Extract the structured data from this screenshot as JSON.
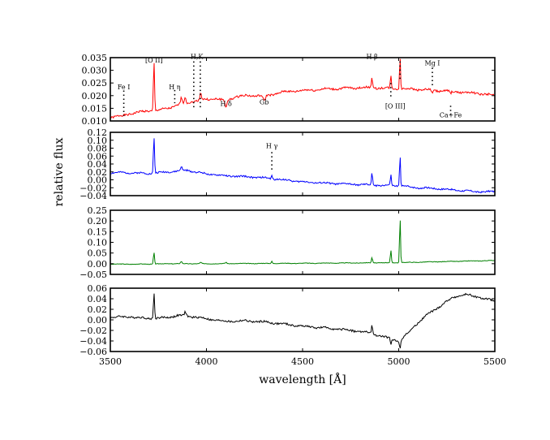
{
  "chart_data": {
    "type": "line",
    "xlabel": "wavelength [Å]",
    "ylabel": "relative flux",
    "xlim": [
      3500,
      5500
    ],
    "xticks": [
      3500,
      4000,
      4500,
      5000,
      5500
    ],
    "panels": [
      {
        "color": "#ff0000",
        "ylim": [
          0.01,
          0.035
        ],
        "yticks": [
          "0.010",
          "0.015",
          "0.020",
          "0.025",
          "0.030",
          "0.035"
        ],
        "baseline": [
          [
            3500,
            0.0115
          ],
          [
            3560,
            0.012
          ],
          [
            3600,
            0.0128
          ],
          [
            3650,
            0.0135
          ],
          [
            3700,
            0.014
          ],
          [
            3750,
            0.0142
          ],
          [
            3800,
            0.015
          ],
          [
            3850,
            0.0162
          ],
          [
            3900,
            0.0172
          ],
          [
            3950,
            0.018
          ],
          [
            4000,
            0.0185
          ],
          [
            4050,
            0.0188
          ],
          [
            4100,
            0.018
          ],
          [
            4150,
            0.0195
          ],
          [
            4200,
            0.02
          ],
          [
            4300,
            0.02
          ],
          [
            4350,
            0.0205
          ],
          [
            4400,
            0.0215
          ],
          [
            4500,
            0.022
          ],
          [
            4600,
            0.0225
          ],
          [
            4700,
            0.0228
          ],
          [
            4800,
            0.0232
          ],
          [
            4900,
            0.023
          ],
          [
            5000,
            0.0228
          ],
          [
            5100,
            0.0225
          ],
          [
            5200,
            0.022
          ],
          [
            5300,
            0.0215
          ],
          [
            5400,
            0.021
          ],
          [
            5500,
            0.02
          ]
        ],
        "features": [
          [
            3727,
            0.02,
            4
          ],
          [
            3869,
            0.003,
            5
          ],
          [
            3889,
            0.0025,
            5
          ],
          [
            3970,
            0.003,
            5
          ],
          [
            4102,
            -0.0025,
            8
          ],
          [
            4300,
            -0.002,
            10
          ],
          [
            4861,
            0.0045,
            4
          ],
          [
            4959,
            0.005,
            3.5
          ],
          [
            5007,
            0.013,
            3.5
          ],
          [
            5175,
            -0.001,
            6
          ],
          [
            5270,
            -0.001,
            6
          ]
        ],
        "seed": 1,
        "noise": 0.0004,
        "annotations": [
          {
            "label": "Fe I",
            "x": 3570,
            "y": 0.0225
          },
          {
            "label": "[O II]",
            "x": 3727,
            "y": 0.033
          },
          {
            "label": "H η",
            "x": 3835,
            "y": 0.0225
          },
          {
            "label": "H,K",
            "x": 3950,
            "y": 0.0345
          },
          {
            "label": "H δ",
            "x": 4102,
            "y": 0.016
          },
          {
            "label": "Gb",
            "x": 4300,
            "y": 0.0165
          },
          {
            "label": "H β",
            "x": 4861,
            "y": 0.0345
          },
          {
            "label": "[O III]",
            "x": 4982,
            "y": 0.015
          },
          {
            "label": "Mg I",
            "x": 5175,
            "y": 0.032
          },
          {
            "label": "Ca+Fe",
            "x": 5270,
            "y": 0.0115
          }
        ],
        "markers": [
          {
            "x": 3570,
            "y1": 0.022,
            "y2": 0.012
          },
          {
            "x": 3835,
            "y1": 0.0222,
            "y2": 0.017
          },
          {
            "x": 3934,
            "y1": 0.0335,
            "y2": 0.015
          },
          {
            "x": 3968,
            "y1": 0.0335,
            "y2": 0.015
          },
          {
            "x": 4959,
            "y1": 0.025,
            "y2": 0.0195
          },
          {
            "x": 5007,
            "y1": 0.0335,
            "y2": 0.0265
          },
          {
            "x": 5175,
            "y1": 0.031,
            "y2": 0.0235
          },
          {
            "x": 5270,
            "y1": 0.016,
            "y2": 0.0125
          }
        ]
      },
      {
        "color": "#0000ff",
        "ylim": [
          -0.04,
          0.12
        ],
        "yticks": [
          "−0.04",
          "−0.02",
          "0.00",
          "0.02",
          "0.04",
          "0.06",
          "0.08",
          "0.10",
          "0.12"
        ],
        "baseline": [
          [
            3500,
            0.018
          ],
          [
            3600,
            0.018
          ],
          [
            3700,
            0.016
          ],
          [
            3800,
            0.02
          ],
          [
            3900,
            0.024
          ],
          [
            4000,
            0.015
          ],
          [
            4100,
            0.01
          ],
          [
            4200,
            0.008
          ],
          [
            4300,
            0.005
          ],
          [
            4400,
            0.0
          ],
          [
            4500,
            -0.005
          ],
          [
            4600,
            -0.008
          ],
          [
            4700,
            -0.01
          ],
          [
            4800,
            -0.012
          ],
          [
            4900,
            -0.014
          ],
          [
            5000,
            -0.015
          ],
          [
            5100,
            -0.02
          ],
          [
            5200,
            -0.022
          ],
          [
            5300,
            -0.026
          ],
          [
            5400,
            -0.03
          ],
          [
            5500,
            -0.03
          ]
        ],
        "features": [
          [
            3727,
            0.095,
            4
          ],
          [
            3869,
            0.01,
            5
          ],
          [
            4340,
            0.008,
            4
          ],
          [
            4861,
            0.032,
            4
          ],
          [
            4959,
            0.03,
            3.5
          ],
          [
            5007,
            0.08,
            3.5
          ]
        ],
        "seed": 2,
        "noise": 0.002,
        "annotations": [
          {
            "label": "H γ",
            "x": 4340,
            "y": 0.08
          }
        ],
        "markers": [
          {
            "x": 4340,
            "y1": 0.07,
            "y2": 0.025
          }
        ]
      },
      {
        "color": "#008000",
        "ylim": [
          -0.05,
          0.25
        ],
        "yticks": [
          "−0.05",
          "0.00",
          "0.05",
          "0.10",
          "0.15",
          "0.20",
          "0.25"
        ],
        "baseline": [
          [
            3500,
            -0.002
          ],
          [
            3700,
            -0.002
          ],
          [
            3800,
            0.0
          ],
          [
            4000,
            0.0
          ],
          [
            4500,
            0.002
          ],
          [
            5000,
            0.005
          ],
          [
            5500,
            0.015
          ]
        ],
        "features": [
          [
            3727,
            0.055,
            4
          ],
          [
            3869,
            0.01,
            5
          ],
          [
            3970,
            0.006,
            5
          ],
          [
            4102,
            0.006,
            5
          ],
          [
            4340,
            0.01,
            4
          ],
          [
            4861,
            0.025,
            4
          ],
          [
            4959,
            0.06,
            3.5
          ],
          [
            5007,
            0.215,
            3.5
          ]
        ],
        "seed": 3,
        "noise": 0.0012,
        "annotations": [],
        "markers": []
      },
      {
        "color": "#000000",
        "ylim": [
          -0.06,
          0.06
        ],
        "yticks": [
          "−0.06",
          "−0.04",
          "−0.02",
          "0.00",
          "0.02",
          "0.04",
          "0.06"
        ],
        "baseline": [
          [
            3500,
            0.005
          ],
          [
            3600,
            0.006
          ],
          [
            3650,
            0.004
          ],
          [
            3700,
            0.003
          ],
          [
            3750,
            0.003
          ],
          [
            3800,
            0.005
          ],
          [
            3850,
            0.008
          ],
          [
            3900,
            0.007
          ],
          [
            3950,
            0.005
          ],
          [
            4000,
            0.002
          ],
          [
            4100,
            -0.003
          ],
          [
            4200,
            -0.002
          ],
          [
            4300,
            -0.004
          ],
          [
            4400,
            -0.008
          ],
          [
            4500,
            -0.012
          ],
          [
            4600,
            -0.015
          ],
          [
            4700,
            -0.018
          ],
          [
            4800,
            -0.022
          ],
          [
            4850,
            -0.025
          ],
          [
            4900,
            -0.03
          ],
          [
            4950,
            -0.035
          ],
          [
            5000,
            -0.04
          ],
          [
            5050,
            -0.025
          ],
          [
            5100,
            -0.005
          ],
          [
            5150,
            0.01
          ],
          [
            5200,
            0.022
          ],
          [
            5250,
            0.035
          ],
          [
            5300,
            0.045
          ],
          [
            5350,
            0.048
          ],
          [
            5400,
            0.044
          ],
          [
            5450,
            0.04
          ],
          [
            5500,
            0.035
          ]
        ],
        "features": [
          [
            3727,
            0.05,
            4
          ],
          [
            3890,
            0.008,
            6
          ],
          [
            4861,
            0.015,
            4
          ],
          [
            4959,
            -0.012,
            3.5
          ],
          [
            5007,
            -0.018,
            4
          ]
        ],
        "seed": 4,
        "noise": 0.0018,
        "annotations": [],
        "markers": []
      }
    ]
  }
}
